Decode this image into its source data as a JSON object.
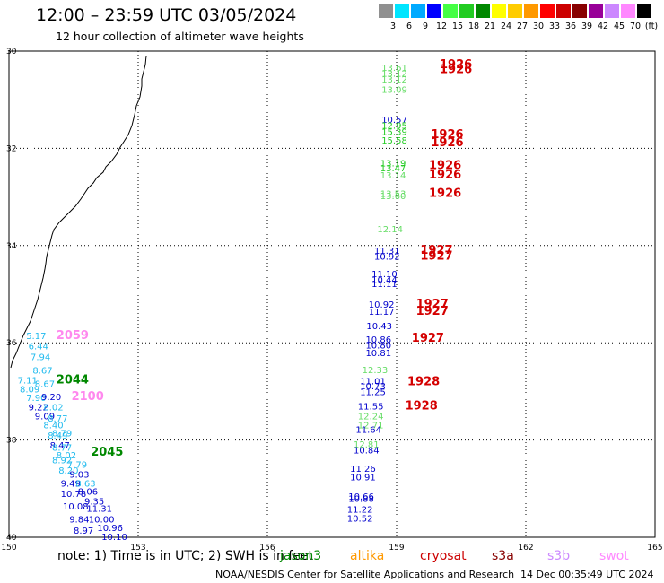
{
  "header": {
    "title": "12:00 – 23:59 UTC 03/05/2024",
    "subtitle": "12 hour collection of altimeter wave heights"
  },
  "colorbar": {
    "colors": [
      "#909090",
      "#00e5ff",
      "#00aaff",
      "#0000ff",
      "#44ff44",
      "#22cc22",
      "#008800",
      "#ffff00",
      "#ffcc00",
      "#ff9900",
      "#ff0000",
      "#cc0000",
      "#880000",
      "#990099",
      "#cc88ff",
      "#ff88ff",
      "#000000"
    ],
    "labels": [
      "3",
      "6",
      "9",
      "12",
      "15",
      "18",
      "21",
      "24",
      "27",
      "30",
      "33",
      "36",
      "39",
      "42",
      "45",
      "70",
      "(ft)"
    ]
  },
  "map": {
    "lon_range": [
      150,
      165
    ],
    "lat_range": [
      -30,
      -40
    ],
    "lon_ticks": [
      "150",
      "153",
      "156",
      "159",
      "162",
      "165"
    ],
    "lat_ticks": [
      "-30",
      "-32",
      "-34",
      "-36",
      "-38",
      "-40"
    ],
    "lat_tick_labels": [
      "30",
      "32",
      "34",
      "36",
      "38",
      "40"
    ],
    "pass_labels": [
      {
        "text": "1926",
        "lon": 160.0,
        "lat": -30.28,
        "color": "#d40000"
      },
      {
        "text": "1926",
        "lon": 160.0,
        "lat": -30.38,
        "color": "#d40000"
      },
      {
        "text": "1926",
        "lon": 159.8,
        "lat": -31.72,
        "color": "#d40000"
      },
      {
        "text": "1926",
        "lon": 159.8,
        "lat": -31.88,
        "color": "#d40000"
      },
      {
        "text": "1926",
        "lon": 159.75,
        "lat": -32.35,
        "color": "#d40000"
      },
      {
        "text": "1926",
        "lon": 159.75,
        "lat": -32.55,
        "color": "#d40000"
      },
      {
        "text": "1926",
        "lon": 159.75,
        "lat": -32.92,
        "color": "#d40000"
      },
      {
        "text": "1927",
        "lon": 159.55,
        "lat": -34.1,
        "color": "#d40000"
      },
      {
        "text": "1927",
        "lon": 159.55,
        "lat": -34.22,
        "color": "#d40000"
      },
      {
        "text": "1927",
        "lon": 159.45,
        "lat": -35.2,
        "color": "#d40000"
      },
      {
        "text": "1927",
        "lon": 159.45,
        "lat": -35.35,
        "color": "#d40000"
      },
      {
        "text": "1927",
        "lon": 159.35,
        "lat": -35.9,
        "color": "#d40000"
      },
      {
        "text": "1928",
        "lon": 159.25,
        "lat": -36.8,
        "color": "#d40000"
      },
      {
        "text": "1928",
        "lon": 159.2,
        "lat": -37.3,
        "color": "#d40000"
      },
      {
        "text": "2059",
        "lon": 151.1,
        "lat": -35.85,
        "color": "#ff88ee"
      },
      {
        "text": "2044",
        "lon": 151.1,
        "lat": -36.76,
        "color": "#008800"
      },
      {
        "text": "2100",
        "lon": 151.45,
        "lat": -37.1,
        "color": "#ff88ee"
      },
      {
        "text": "2045",
        "lon": 151.9,
        "lat": -38.25,
        "color": "#008800"
      }
    ],
    "wave_heights": [
      {
        "text": "13.61",
        "lon": 158.65,
        "lat": -30.33,
        "color": "#66dd66"
      },
      {
        "text": "13.12",
        "lon": 158.65,
        "lat": -30.45,
        "color": "#66dd66"
      },
      {
        "text": "13.12",
        "lon": 158.65,
        "lat": -30.57,
        "color": "#66dd66"
      },
      {
        "text": "13.09",
        "lon": 158.65,
        "lat": -30.78,
        "color": "#66dd66"
      },
      {
        "text": "10.57",
        "lon": 158.65,
        "lat": -31.4,
        "color": "#0000cc"
      },
      {
        "text": "12.95",
        "lon": 158.65,
        "lat": -31.52,
        "color": "#22cc22"
      },
      {
        "text": "15.39",
        "lon": 158.65,
        "lat": -31.65,
        "color": "#22cc22"
      },
      {
        "text": "15.58",
        "lon": 158.65,
        "lat": -31.83,
        "color": "#22cc22"
      },
      {
        "text": "13.19",
        "lon": 158.62,
        "lat": -32.3,
        "color": "#22cc22"
      },
      {
        "text": "13.47",
        "lon": 158.62,
        "lat": -32.4,
        "color": "#22cc22"
      },
      {
        "text": "13.14",
        "lon": 158.62,
        "lat": -32.55,
        "color": "#66dd66"
      },
      {
        "text": "13.53",
        "lon": 158.62,
        "lat": -32.92,
        "color": "#66dd66"
      },
      {
        "text": "13.60",
        "lon": 158.62,
        "lat": -32.97,
        "color": "#66dd66"
      },
      {
        "text": "12.14",
        "lon": 158.55,
        "lat": -33.65,
        "color": "#66dd66"
      },
      {
        "text": "11.31",
        "lon": 158.48,
        "lat": -34.1,
        "color": "#0000cc"
      },
      {
        "text": "10.92",
        "lon": 158.48,
        "lat": -34.22,
        "color": "#0000cc"
      },
      {
        "text": "11.10",
        "lon": 158.42,
        "lat": -34.58,
        "color": "#0000cc"
      },
      {
        "text": "10.44",
        "lon": 158.42,
        "lat": -34.7,
        "color": "#0000cc"
      },
      {
        "text": "11.11",
        "lon": 158.42,
        "lat": -34.78,
        "color": "#0000cc"
      },
      {
        "text": "10.92",
        "lon": 158.35,
        "lat": -35.2,
        "color": "#0000cc"
      },
      {
        "text": "11.17",
        "lon": 158.35,
        "lat": -35.35,
        "color": "#0000cc"
      },
      {
        "text": "10.43",
        "lon": 158.3,
        "lat": -35.65,
        "color": "#0000cc"
      },
      {
        "text": "10.86",
        "lon": 158.28,
        "lat": -35.92,
        "color": "#0000cc"
      },
      {
        "text": "10.80",
        "lon": 158.28,
        "lat": -36.04,
        "color": "#0000cc"
      },
      {
        "text": "10.81",
        "lon": 158.28,
        "lat": -36.2,
        "color": "#0000cc"
      },
      {
        "text": "12.33",
        "lon": 158.2,
        "lat": -36.55,
        "color": "#66dd66"
      },
      {
        "text": "11.01",
        "lon": 158.15,
        "lat": -36.78,
        "color": "#0000cc"
      },
      {
        "text": "10.73",
        "lon": 158.15,
        "lat": -36.88,
        "color": "#0000cc"
      },
      {
        "text": "11.25",
        "lon": 158.15,
        "lat": -37.0,
        "color": "#0000cc"
      },
      {
        "text": "11.55",
        "lon": 158.1,
        "lat": -37.3,
        "color": "#0000cc"
      },
      {
        "text": "12.24",
        "lon": 158.1,
        "lat": -37.5,
        "color": "#66dd66"
      },
      {
        "text": "12.71",
        "lon": 158.1,
        "lat": -37.68,
        "color": "#66dd66"
      },
      {
        "text": "11.64",
        "lon": 158.05,
        "lat": -37.78,
        "color": "#0000cc"
      },
      {
        "text": "12.81",
        "lon": 158.0,
        "lat": -38.08,
        "color": "#66dd66"
      },
      {
        "text": "10.84",
        "lon": 158.0,
        "lat": -38.2,
        "color": "#0000cc"
      },
      {
        "text": "11.26",
        "lon": 157.92,
        "lat": -38.58,
        "color": "#0000cc"
      },
      {
        "text": "10.91",
        "lon": 157.92,
        "lat": -38.75,
        "color": "#0000cc"
      },
      {
        "text": "10.66",
        "lon": 157.88,
        "lat": -39.15,
        "color": "#0000cc"
      },
      {
        "text": "10.88",
        "lon": 157.88,
        "lat": -39.2,
        "color": "#0000cc"
      },
      {
        "text": "11.22",
        "lon": 157.85,
        "lat": -39.42,
        "color": "#0000cc"
      },
      {
        "text": "10.52",
        "lon": 157.85,
        "lat": -39.6,
        "color": "#0000cc"
      },
      {
        "text": "5.17",
        "lon": 150.4,
        "lat": -35.85,
        "color": "#22bbee"
      },
      {
        "text": "6.44",
        "lon": 150.45,
        "lat": -36.06,
        "color": "#22bbee"
      },
      {
        "text": "7.94",
        "lon": 150.5,
        "lat": -36.28,
        "color": "#22bbee"
      },
      {
        "text": "8.67",
        "lon": 150.55,
        "lat": -36.56,
        "color": "#22bbee"
      },
      {
        "text": "7.11",
        "lon": 150.2,
        "lat": -36.76,
        "color": "#22bbee"
      },
      {
        "text": "8.67",
        "lon": 150.6,
        "lat": -36.84,
        "color": "#22bbee"
      },
      {
        "text": "8.09",
        "lon": 150.25,
        "lat": -36.95,
        "color": "#22bbee"
      },
      {
        "text": "7.90",
        "lon": 150.4,
        "lat": -37.12,
        "color": "#22bbee"
      },
      {
        "text": "9.20",
        "lon": 150.75,
        "lat": -37.1,
        "color": "#0000cc"
      },
      {
        "text": "9.22",
        "lon": 150.45,
        "lat": -37.32,
        "color": "#0000cc"
      },
      {
        "text": "8.02",
        "lon": 150.8,
        "lat": -37.32,
        "color": "#22bbee"
      },
      {
        "text": "9.09",
        "lon": 150.6,
        "lat": -37.5,
        "color": "#0000cc"
      },
      {
        "text": "8.77",
        "lon": 150.9,
        "lat": -37.55,
        "color": "#22bbee"
      },
      {
        "text": "8.40",
        "lon": 150.8,
        "lat": -37.68,
        "color": "#22bbee"
      },
      {
        "text": "8.79",
        "lon": 151.0,
        "lat": -37.85,
        "color": "#22bbee"
      },
      {
        "text": "8.49",
        "lon": 150.9,
        "lat": -37.9,
        "color": "#22bbee"
      },
      {
        "text": "8.47",
        "lon": 150.95,
        "lat": -38.1,
        "color": "#0000cc"
      },
      {
        "text": "8.77",
        "lon": 151.0,
        "lat": -38.15,
        "color": "#22bbee"
      },
      {
        "text": "8.02",
        "lon": 151.1,
        "lat": -38.3,
        "color": "#22bbee"
      },
      {
        "text": "8.92",
        "lon": 151.0,
        "lat": -38.4,
        "color": "#22bbee"
      },
      {
        "text": "7.79",
        "lon": 151.35,
        "lat": -38.5,
        "color": "#22bbee"
      },
      {
        "text": "8.20",
        "lon": 151.15,
        "lat": -38.62,
        "color": "#22bbee"
      },
      {
        "text": "9.03",
        "lon": 151.4,
        "lat": -38.7,
        "color": "#0000cc"
      },
      {
        "text": "9.49",
        "lon": 151.2,
        "lat": -38.88,
        "color": "#0000cc"
      },
      {
        "text": "8.63",
        "lon": 151.55,
        "lat": -38.88,
        "color": "#22bbee"
      },
      {
        "text": "10.78",
        "lon": 151.2,
        "lat": -39.1,
        "color": "#0000cc"
      },
      {
        "text": "8.06",
        "lon": 151.6,
        "lat": -39.05,
        "color": "#0000cc"
      },
      {
        "text": "9.35",
        "lon": 151.75,
        "lat": -39.25,
        "color": "#0000cc"
      },
      {
        "text": "10.08",
        "lon": 151.25,
        "lat": -39.35,
        "color": "#0000cc"
      },
      {
        "text": "11.31",
        "lon": 151.8,
        "lat": -39.4,
        "color": "#0000cc"
      },
      {
        "text": "9.84",
        "lon": 151.4,
        "lat": -39.62,
        "color": "#0000cc"
      },
      {
        "text": "10.00",
        "lon": 151.85,
        "lat": -39.62,
        "color": "#0000cc"
      },
      {
        "text": "10.96",
        "lon": 152.05,
        "lat": -39.8,
        "color": "#0000cc"
      },
      {
        "text": "8.97",
        "lon": 151.5,
        "lat": -39.85,
        "color": "#0000cc"
      },
      {
        "text": "10.10",
        "lon": 152.15,
        "lat": -39.98,
        "color": "#0000cc"
      }
    ]
  },
  "note": "note:  1) Time is in UTC;  2) SWH is in feet",
  "satellites": [
    {
      "name": "jason3",
      "color": "#008800"
    },
    {
      "name": "altika",
      "color": "#ff9900"
    },
    {
      "name": "cryosat",
      "color": "#cc0000"
    },
    {
      "name": "s3a",
      "color": "#880000"
    },
    {
      "name": "s3b",
      "color": "#cc88ff"
    },
    {
      "name": "swot",
      "color": "#ff88ff"
    }
  ],
  "footer": {
    "credit": "NOAA/NESDIS Center for Satellite Applications and Research",
    "timestamp": "14 Dec 00:35:49 UTC 2024"
  }
}
